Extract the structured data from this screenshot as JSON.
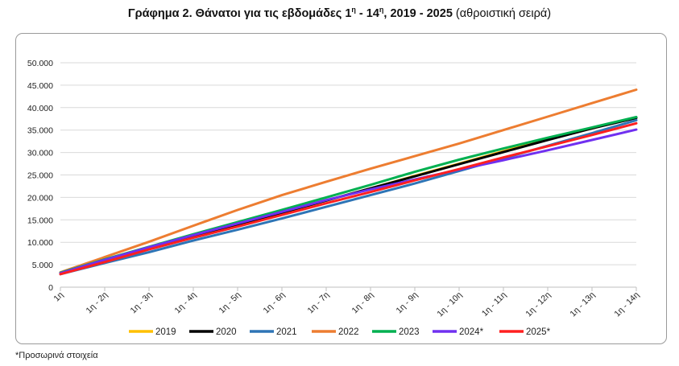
{
  "title": {
    "bold_prefix": "Γράφημα 2. Θάνατοι για τις εβδομάδες 1",
    "sup1": "η",
    "bold_mid": " - 14",
    "sup2": "η",
    "bold_suffix": ", 2019 - 2025",
    "normal_suffix": " (αθροιστική σειρά)"
  },
  "footnote": "*Προσωρινά στοιχεία",
  "chart_data": {
    "type": "line",
    "categories": [
      "1η",
      "1η - 2η",
      "1η - 3η",
      "1η - 4η",
      "1η - 5η",
      "1η - 6η",
      "1η - 7η",
      "1η - 8η",
      "1η - 9η",
      "1η - 10η",
      "1η - 11η",
      "1η - 12η",
      "1η - 13η",
      "1η - 14η"
    ],
    "ylim": [
      0,
      50000
    ],
    "yticks": [
      0,
      5000,
      10000,
      15000,
      20000,
      25000,
      30000,
      35000,
      40000,
      45000,
      50000
    ],
    "ytick_labels": [
      "0",
      "5.000",
      "10.000",
      "15.000",
      "20.000",
      "25.000",
      "30.000",
      "35.000",
      "40.000",
      "45.000",
      "50.000"
    ],
    "grid": true,
    "legend_position": "bottom",
    "series": [
      {
        "name": "2019",
        "color": "#FFC000",
        "values": [
          3000,
          5900,
          8700,
          11400,
          14000,
          16600,
          19300,
          22000,
          24800,
          27500,
          30300,
          32900,
          35400,
          37800
        ]
      },
      {
        "name": "2020",
        "color": "#000000",
        "values": [
          3000,
          5800,
          8600,
          11300,
          14000,
          16600,
          19300,
          22000,
          24700,
          27400,
          30100,
          32800,
          35400,
          37700
        ]
      },
      {
        "name": "2021",
        "color": "#2E75B6",
        "values": [
          2900,
          5400,
          7800,
          10400,
          12800,
          15300,
          17900,
          20500,
          23100,
          25900,
          28700,
          31500,
          34300,
          37200
        ]
      },
      {
        "name": "2022",
        "color": "#ED7D31",
        "values": [
          3300,
          6700,
          10100,
          13700,
          17200,
          20500,
          23500,
          26400,
          29200,
          32000,
          35000,
          38000,
          41000,
          44000
        ]
      },
      {
        "name": "2023",
        "color": "#00B050",
        "values": [
          3200,
          6200,
          9000,
          11800,
          14500,
          17200,
          20000,
          22800,
          25700,
          28400,
          30900,
          33300,
          35600,
          37900
        ]
      },
      {
        "name": "2024*",
        "color": "#7030F0",
        "values": [
          3100,
          6100,
          8900,
          11600,
          14200,
          16800,
          19400,
          21800,
          24000,
          26200,
          28300,
          30500,
          32800,
          35100
        ]
      },
      {
        "name": "2025*",
        "color": "#FF2020",
        "values": [
          2900,
          5600,
          8400,
          11000,
          13500,
          16100,
          18700,
          21200,
          23800,
          26300,
          28900,
          31400,
          33900,
          36500
        ]
      }
    ]
  }
}
